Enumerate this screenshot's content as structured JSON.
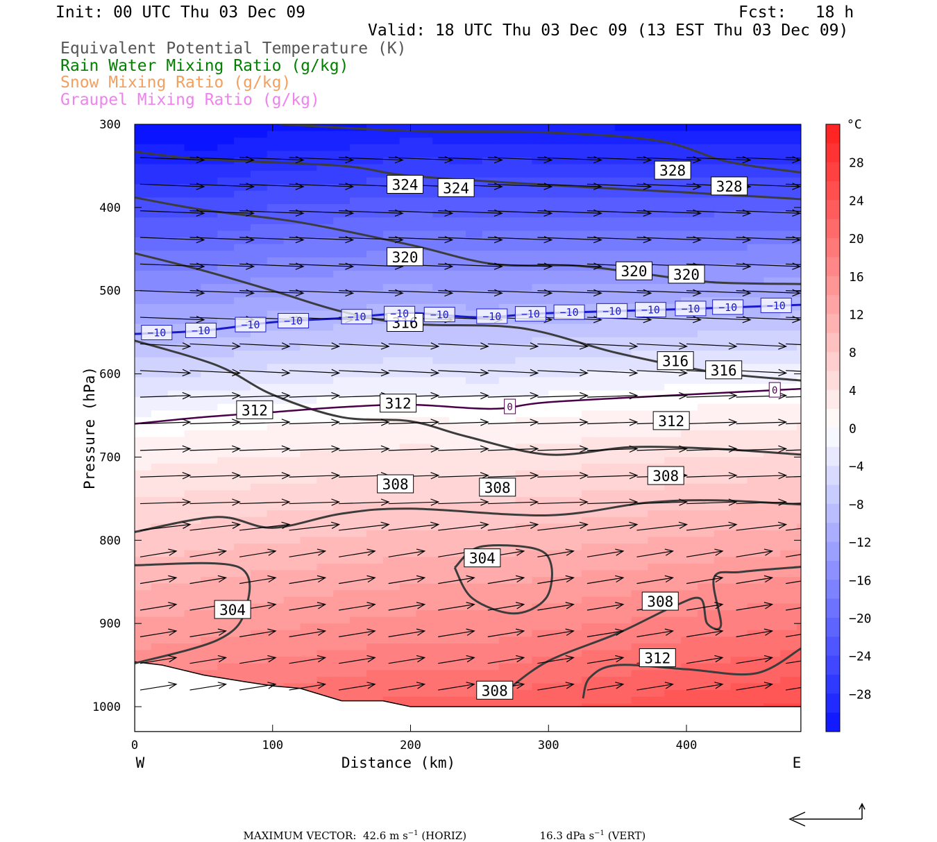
{
  "header": {
    "init": "Init: 00 UTC Thu 03 Dec 09",
    "fcst": "Fcst:   18 h",
    "valid": "Valid: 18 UTC Thu 03 Dec 09 (13 EST Thu 03 Dec 09)"
  },
  "legend": [
    {
      "label": "Equivalent Potential Temperature (K)",
      "color": "#555555"
    },
    {
      "label": "Rain Water Mixing Ratio (g/kg)",
      "color": "#008000"
    },
    {
      "label": "Snow Mixing Ratio (g/kg)",
      "color": "#f2a060"
    },
    {
      "label": "Graupel Mixing Ratio (g/kg)",
      "color": "#ee82ee"
    }
  ],
  "chart_data": {
    "type": "cross-section",
    "xlabel": "Distance (km)",
    "ylabel": "Pressure (hPa)",
    "xlim": [
      0,
      483
    ],
    "ylim": [
      1030,
      300
    ],
    "x_ticks": [
      "0",
      "100",
      "200",
      "300",
      "400"
    ],
    "y_ticks": [
      "300",
      "400",
      "500",
      "600",
      "700",
      "800",
      "900",
      "1000"
    ],
    "x_tick_values": [
      0,
      100,
      200,
      300,
      400
    ],
    "y_tick_values": [
      300,
      400,
      500,
      600,
      700,
      800,
      900,
      1000
    ],
    "west_label": "W",
    "east_label": "E",
    "colorbar": {
      "unit": "°C",
      "labels": [
        "28",
        "24",
        "20",
        "16",
        "12",
        "8",
        "4",
        "0",
        "−4",
        "−8",
        "−12",
        "−16",
        "−20",
        "−24",
        "−28"
      ],
      "label_values": [
        28,
        24,
        20,
        16,
        12,
        8,
        4,
        0,
        -4,
        -8,
        -12,
        -16,
        -20,
        -24,
        -28
      ],
      "range": [
        -32,
        32
      ],
      "cold_color": "#0a14ff",
      "warm_color": "#ff1e1e"
    },
    "theta_e_contours": [
      {
        "label": "328",
        "points": [
          [
            105,
            300
          ],
          [
            200,
            308
          ],
          [
            300,
            310
          ],
          [
            380,
            320
          ],
          [
            430,
            345
          ],
          [
            483,
            358
          ]
        ]
      },
      {
        "label": "324",
        "points": [
          [
            0,
            333
          ],
          [
            50,
            342
          ],
          [
            150,
            350
          ],
          [
            200,
            362
          ],
          [
            300,
            373
          ],
          [
            400,
            382
          ],
          [
            483,
            390
          ]
        ]
      },
      {
        "label": "320",
        "points": [
          [
            0,
            388
          ],
          [
            50,
            403
          ],
          [
            120,
            418
          ],
          [
            200,
            445
          ],
          [
            260,
            468
          ],
          [
            320,
            470
          ],
          [
            370,
            480
          ],
          [
            420,
            490
          ],
          [
            483,
            492
          ]
        ]
      },
      {
        "label": "316",
        "points": [
          [
            0,
            455
          ],
          [
            50,
            476
          ],
          [
            100,
            500
          ],
          [
            150,
            525
          ],
          [
            200,
            540
          ],
          [
            280,
            545
          ],
          [
            350,
            575
          ],
          [
            420,
            598
          ],
          [
            483,
            608
          ]
        ]
      },
      {
        "label": "312",
        "points": [
          [
            0,
            560
          ],
          [
            60,
            590
          ],
          [
            100,
            625
          ],
          [
            150,
            652
          ],
          [
            200,
            657
          ],
          [
            240,
            675
          ],
          [
            300,
            697
          ],
          [
            360,
            688
          ],
          [
            420,
            690
          ],
          [
            483,
            697
          ]
        ]
      },
      {
        "label": "308",
        "points": [
          [
            0,
            790
          ],
          [
            60,
            772
          ],
          [
            100,
            785
          ],
          [
            150,
            768
          ],
          [
            200,
            762
          ],
          [
            300,
            770
          ],
          [
            370,
            755
          ],
          [
            420,
            752
          ],
          [
            483,
            757
          ]
        ]
      },
      {
        "label": "304",
        "points": [
          [
            0,
            948
          ],
          [
            60,
            920
          ],
          [
            80,
            885
          ],
          [
            75,
            832
          ],
          [
            0,
            830
          ]
        ]
      },
      {
        "label": "304",
        "points": [
          [
            232,
            833
          ],
          [
            245,
            870
          ],
          [
            275,
            888
          ],
          [
            298,
            870
          ],
          [
            302,
            830
          ],
          [
            290,
            810
          ],
          [
            250,
            808
          ],
          [
            232,
            833
          ]
        ]
      },
      {
        "label": "308",
        "points": [
          [
            270,
            980
          ],
          [
            300,
            945
          ],
          [
            350,
            912
          ],
          [
            390,
            880
          ],
          [
            410,
            870
          ],
          [
            415,
            900
          ],
          [
            425,
            902
          ],
          [
            420,
            845
          ],
          [
            440,
            838
          ],
          [
            483,
            832
          ]
        ]
      },
      {
        "label": "312",
        "points": [
          [
            325,
            990
          ],
          [
            330,
            965
          ],
          [
            350,
            950
          ],
          [
            400,
            955
          ],
          [
            450,
            960
          ],
          [
            483,
            930
          ]
        ]
      }
    ],
    "theta_e_labels": [
      {
        "text": "324",
        "x": 196,
        "p": 373
      },
      {
        "text": "324",
        "x": 233,
        "p": 377
      },
      {
        "text": "328",
        "x": 390,
        "p": 356
      },
      {
        "text": "328",
        "x": 431,
        "p": 375
      },
      {
        "text": "320",
        "x": 196,
        "p": 460
      },
      {
        "text": "320",
        "x": 362,
        "p": 477
      },
      {
        "text": "320",
        "x": 400,
        "p": 481
      },
      {
        "text": "316",
        "x": 196,
        "p": 539
      },
      {
        "text": "316",
        "x": 392,
        "p": 585
      },
      {
        "text": "316",
        "x": 427,
        "p": 596
      },
      {
        "text": "312",
        "x": 87,
        "p": 644
      },
      {
        "text": "312",
        "x": 191,
        "p": 636
      },
      {
        "text": "312",
        "x": 389,
        "p": 657
      },
      {
        "text": "308",
        "x": 189,
        "p": 733
      },
      {
        "text": "308",
        "x": 263,
        "p": 737
      },
      {
        "text": "308",
        "x": 385,
        "p": 723
      },
      {
        "text": "304",
        "x": 71,
        "p": 884
      },
      {
        "text": "304",
        "x": 252,
        "p": 822
      },
      {
        "text": "308",
        "x": 381,
        "p": 874
      },
      {
        "text": "312",
        "x": 379,
        "p": 942
      },
      {
        "text": "308",
        "x": 261,
        "p": 981
      }
    ],
    "isotherm_minus10": {
      "label": "−10",
      "color": "#1a1acc",
      "points": [
        [
          0,
          552
        ],
        [
          50,
          548
        ],
        [
          100,
          538
        ],
        [
          150,
          533
        ],
        [
          200,
          527
        ],
        [
          250,
          532
        ],
        [
          300,
          527
        ],
        [
          400,
          522
        ],
        [
          483,
          517
        ]
      ],
      "label_x": [
        16,
        48,
        84,
        115,
        161,
        192,
        221,
        259,
        287,
        315,
        346,
        374,
        403,
        430,
        465
      ]
    },
    "isotherm_zero": {
      "label": "0",
      "color": "#4a0048",
      "points": [
        [
          0,
          660
        ],
        [
          50,
          652
        ],
        [
          100,
          646
        ],
        [
          150,
          640
        ],
        [
          200,
          637
        ],
        [
          260,
          642
        ],
        [
          300,
          634
        ],
        [
          400,
          625
        ],
        [
          483,
          618
        ]
      ],
      "label_x": [
        272,
        464
      ]
    },
    "terrain_pressure": [
      [
        0,
        946
      ],
      [
        20,
        950
      ],
      [
        50,
        962
      ],
      [
        80,
        970
      ],
      [
        100,
        975
      ],
      [
        120,
        978
      ],
      [
        150,
        993
      ],
      [
        180,
        993
      ],
      [
        200,
        1000
      ],
      [
        300,
        1000
      ],
      [
        400,
        1000
      ],
      [
        483,
        1000
      ]
    ],
    "wind_vectors_sample_note": "",
    "footer_vector": {
      "prefix": "MAXIMUM VECTOR:",
      "horiz_value": "42.6 m s",
      "horiz_exp": "−1",
      "horiz_tag": "(HORIZ)",
      "vert_value": "16.3 dPa s",
      "vert_exp": "−1",
      "vert_tag": "(VERT)"
    }
  }
}
